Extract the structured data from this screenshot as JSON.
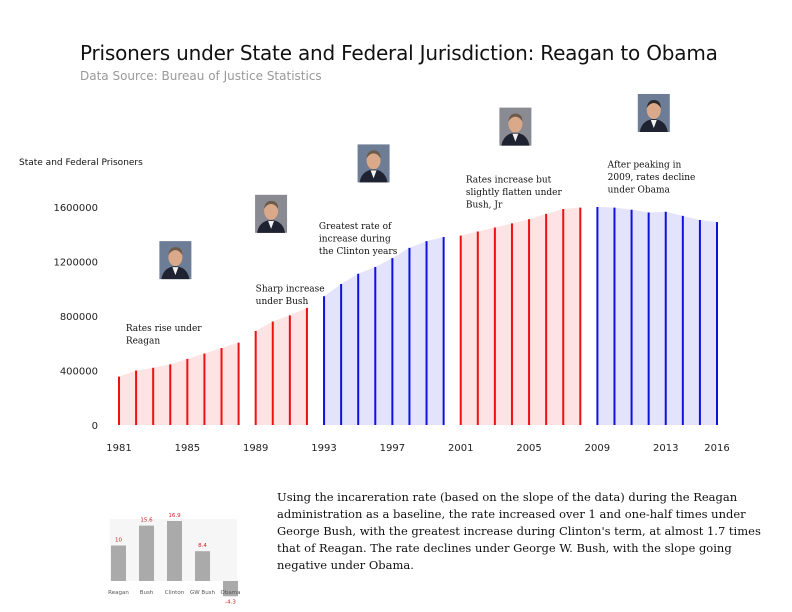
{
  "title": "Prisoners under State and Federal Jurisdiction: Reagan to Obama",
  "subtitle": "Data Source: Bureau of Justice Statistics",
  "note": "Using the incareration rate (based on the slope of the data) during the Reagan administration as a baseline, the rate increased over 1 and one-half times under George Bush, with the greatest increase during Clinton's term, at almost 1.7 times that of Reagan. The rate declines under George W. Bush, with the slope going negative under Obama.",
  "colors": {
    "republican": "#ee1111",
    "democrat": "#1111dd",
    "republican_fill": "#fde3e3",
    "democrat_fill": "#e3e3fb",
    "mini_bar": "#aaaaaa"
  },
  "chart_data": [
    {
      "type": "area",
      "title": "Prisoners under State and Federal Jurisdiction: Reagan to Obama",
      "ylabel": "State and Federal Prisoners",
      "xlabel": "",
      "ylim": [
        0,
        1600000
      ],
      "xlim": [
        1981,
        2016
      ],
      "x_ticks": [
        "1981",
        "1985",
        "1989",
        "1993",
        "1997",
        "2001",
        "2005",
        "2009",
        "2013",
        "2016"
      ],
      "y_ticks": [
        "0",
        "400000",
        "800000",
        "1200000",
        "1600000"
      ],
      "grid": false,
      "series": [
        {
          "party": "republican",
          "x": [
            1981,
            1982,
            1983,
            1984,
            1985,
            1986,
            1987,
            1988
          ],
          "y": [
            355000,
            400000,
            420000,
            445000,
            485000,
            525000,
            565000,
            605000
          ]
        },
        {
          "party": "republican",
          "x": [
            1989,
            1990,
            1991,
            1992
          ],
          "y": [
            690000,
            760000,
            805000,
            860000
          ]
        },
        {
          "party": "democrat",
          "x": [
            1993,
            1994,
            1995,
            1996,
            1997,
            1998,
            1999,
            2000
          ],
          "y": [
            945000,
            1035000,
            1110000,
            1160000,
            1225000,
            1300000,
            1350000,
            1380000
          ]
        },
        {
          "party": "republican",
          "x": [
            2001,
            2002,
            2003,
            2004,
            2005,
            2006,
            2007,
            2008
          ],
          "y": [
            1390000,
            1420000,
            1450000,
            1480000,
            1510000,
            1550000,
            1585000,
            1595000
          ]
        },
        {
          "party": "democrat",
          "x": [
            2009,
            2010,
            2011,
            2012,
            2013,
            2014,
            2015,
            2016
          ],
          "y": [
            1600000,
            1595000,
            1580000,
            1560000,
            1565000,
            1535000,
            1505000,
            1490000
          ]
        }
      ],
      "annotations": [
        {
          "year": 1981.4,
          "value": 690000,
          "lines": [
            "Rates rise under",
            "Reagan"
          ]
        },
        {
          "year": 1989,
          "value": 980000,
          "lines": [
            "Sharp increase",
            "under Bush"
          ]
        },
        {
          "year": 1992.7,
          "value": 1440000,
          "lines": [
            "Greatest rate of",
            "increase during",
            "the Clinton years"
          ]
        },
        {
          "year": 2001.3,
          "value": 1780000,
          "lines": [
            "Rates increase but",
            "slightly flatten under",
            "Bush, Jr"
          ]
        },
        {
          "year": 2009.6,
          "value": 1890000,
          "lines": [
            "After peaking in",
            "2009, rates decline",
            "under Obama"
          ]
        }
      ],
      "portraits": [
        {
          "year": 1984.3,
          "value": 1210000,
          "name": "Reagan"
        },
        {
          "year": 1989.9,
          "value": 1550000,
          "name": "Bush"
        },
        {
          "year": 1995.9,
          "value": 1920000,
          "name": "Clinton"
        },
        {
          "year": 2004.2,
          "value": 2190000,
          "name": "GW Bush"
        },
        {
          "year": 2012.3,
          "value": 2290000,
          "name": "Obama"
        }
      ]
    },
    {
      "type": "bar",
      "categories": [
        "Reagan",
        "Bush",
        "Clinton",
        "GW Bush",
        "Obama"
      ],
      "values": [
        10,
        15.6,
        16.9,
        8.4,
        -4.3
      ],
      "value_labels": [
        "10",
        "15.6",
        "16.9",
        "8.4",
        "-4.3"
      ],
      "ylim": [
        -5,
        18
      ]
    }
  ]
}
